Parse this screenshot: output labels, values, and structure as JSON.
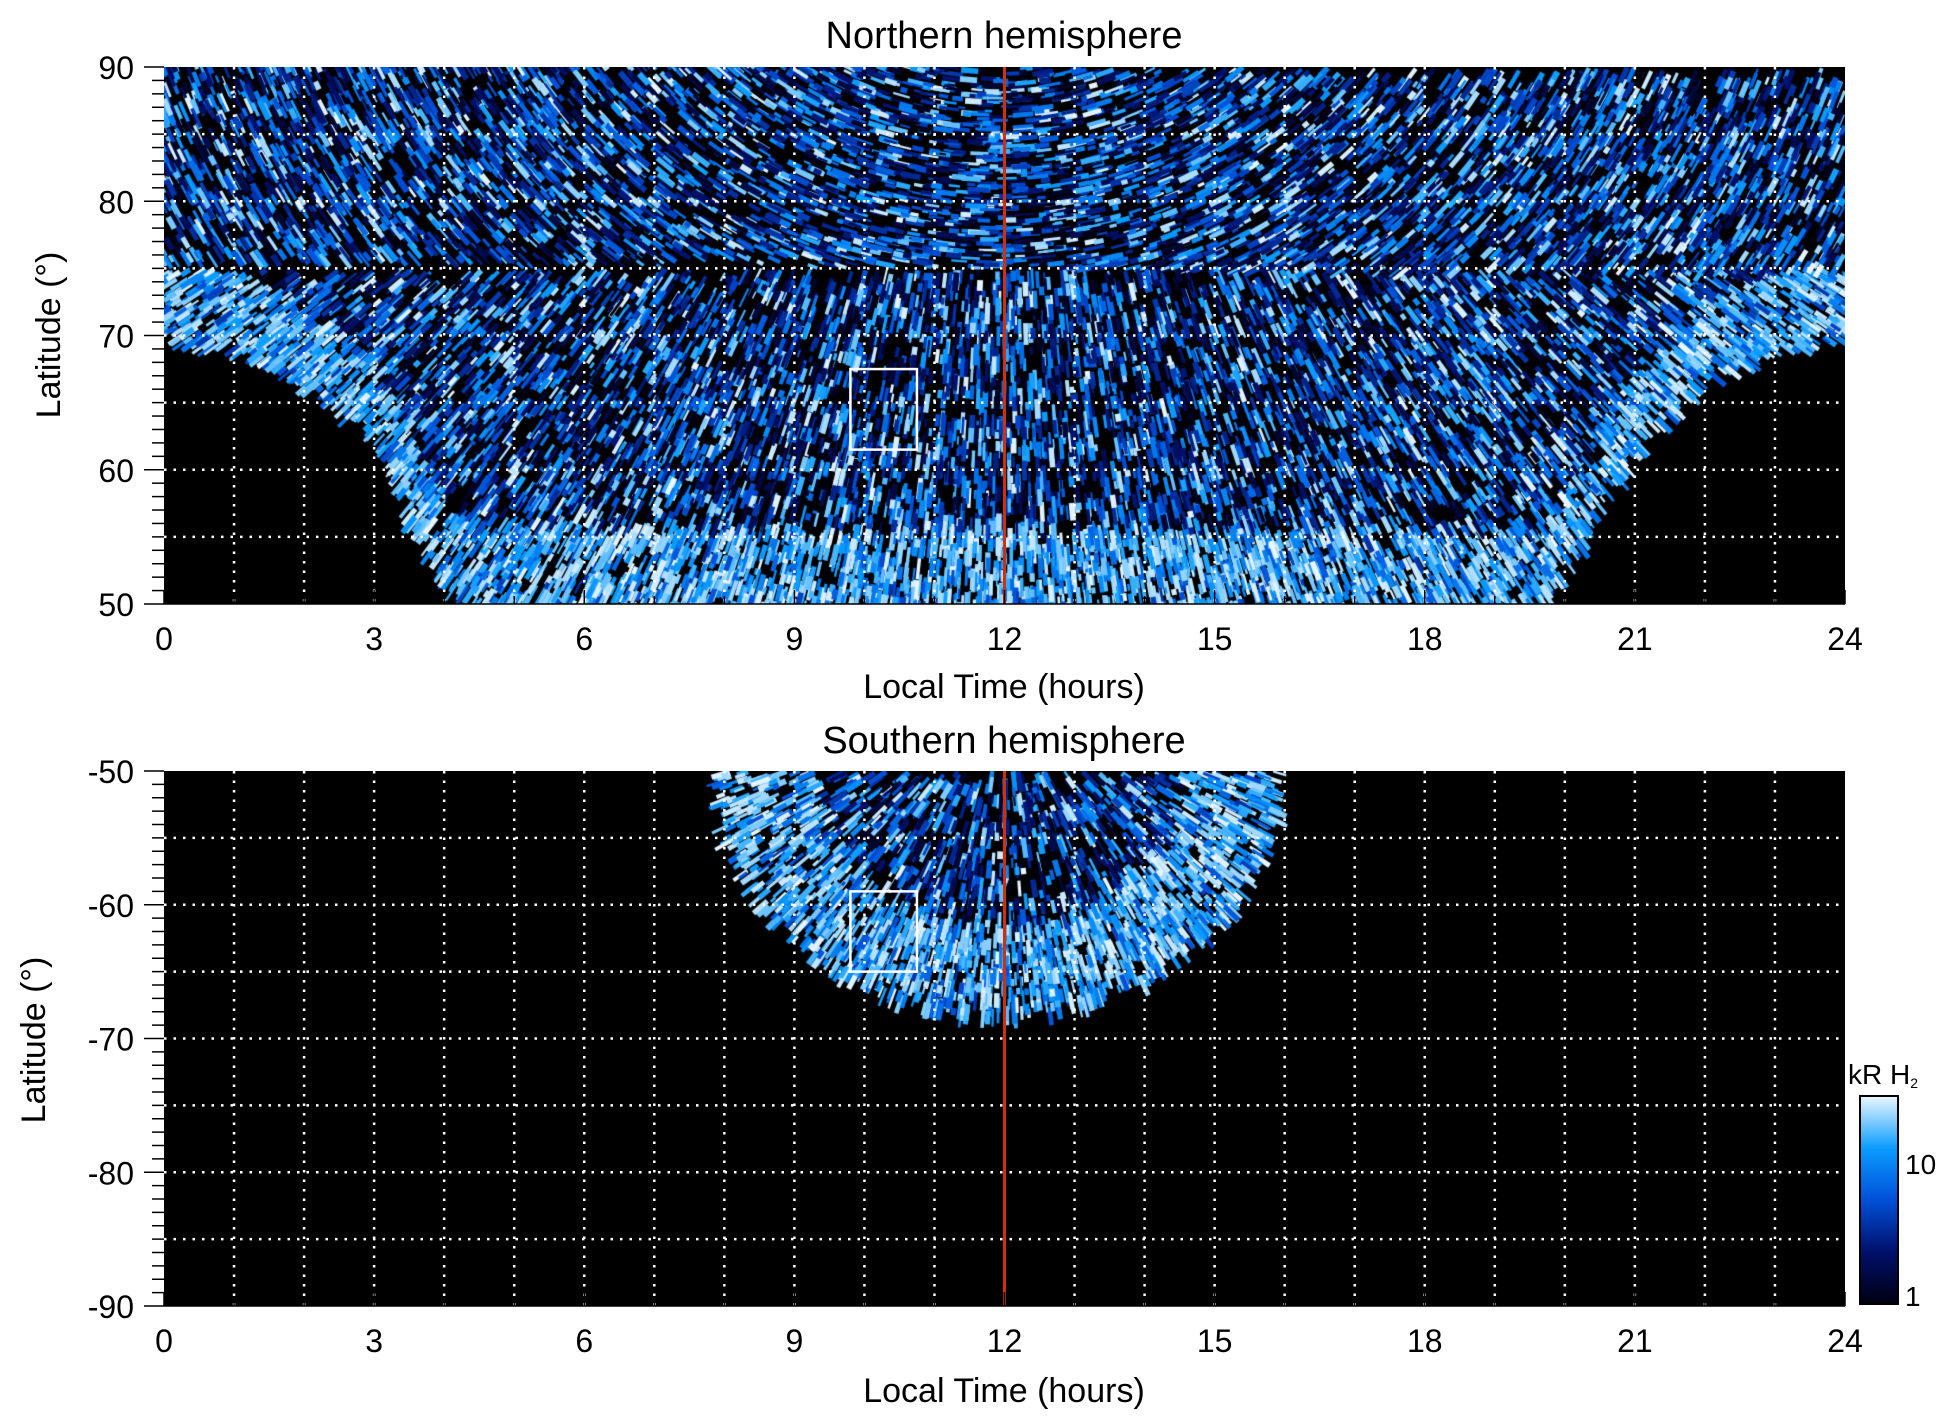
{
  "chart_data": [
    {
      "type": "heatmap",
      "title": "Northern hemisphere",
      "xlabel": "Local Time (hours)",
      "ylabel": "Latitude (°)",
      "xlim": [
        0,
        24
      ],
      "ylim": [
        50,
        90
      ],
      "xticks": [
        "0",
        "3",
        "6",
        "9",
        "12",
        "15",
        "18",
        "21",
        "24"
      ],
      "yticks": [
        "50",
        "60",
        "70",
        "80",
        "90"
      ],
      "grid": true,
      "marker_line_lt": 12,
      "box": {
        "lt": [
          9.8,
          10.75
        ],
        "lat": [
          61.5,
          67.5
        ]
      },
      "coverage_boundary": {
        "lt": [
          0,
          1,
          2,
          3,
          4,
          4.5,
          19.6,
          20,
          21,
          22,
          23,
          24
        ],
        "lat": [
          70,
          69,
          67,
          63,
          52,
          50,
          50,
          53,
          62,
          67,
          69,
          70
        ]
      }
    },
    {
      "type": "heatmap",
      "title": "Southern hemisphere",
      "xlabel": "Local Time (hours)",
      "ylabel": "Latitude (°)",
      "xlim": [
        0,
        24
      ],
      "ylim": [
        -90,
        -50
      ],
      "xticks": [
        "0",
        "3",
        "6",
        "9",
        "12",
        "15",
        "18",
        "21",
        "24"
      ],
      "yticks": [
        "-50",
        "-60",
        "-70",
        "-80",
        "-90"
      ],
      "grid": true,
      "marker_line_lt": 12,
      "box": {
        "lt": [
          9.8,
          10.75
        ],
        "lat": [
          -65,
          -59
        ]
      },
      "coverage_boundary": {
        "lt_range": [
          8,
          15.9
        ],
        "lat_min": -68
      }
    }
  ],
  "colorbar": {
    "label": "kR H",
    "label_sub": "2",
    "scale": "log",
    "range": [
      1,
      30
    ],
    "tick_labels": [
      "10",
      "1"
    ],
    "tick_values": [
      10,
      1
    ],
    "colors": [
      "#000010",
      "#00106a",
      "#0050d8",
      "#0a9cff",
      "#eaf6ff"
    ]
  },
  "colors": {
    "marker_line": "#d03010",
    "box": "#ffffff",
    "grid": "#ffffff"
  }
}
